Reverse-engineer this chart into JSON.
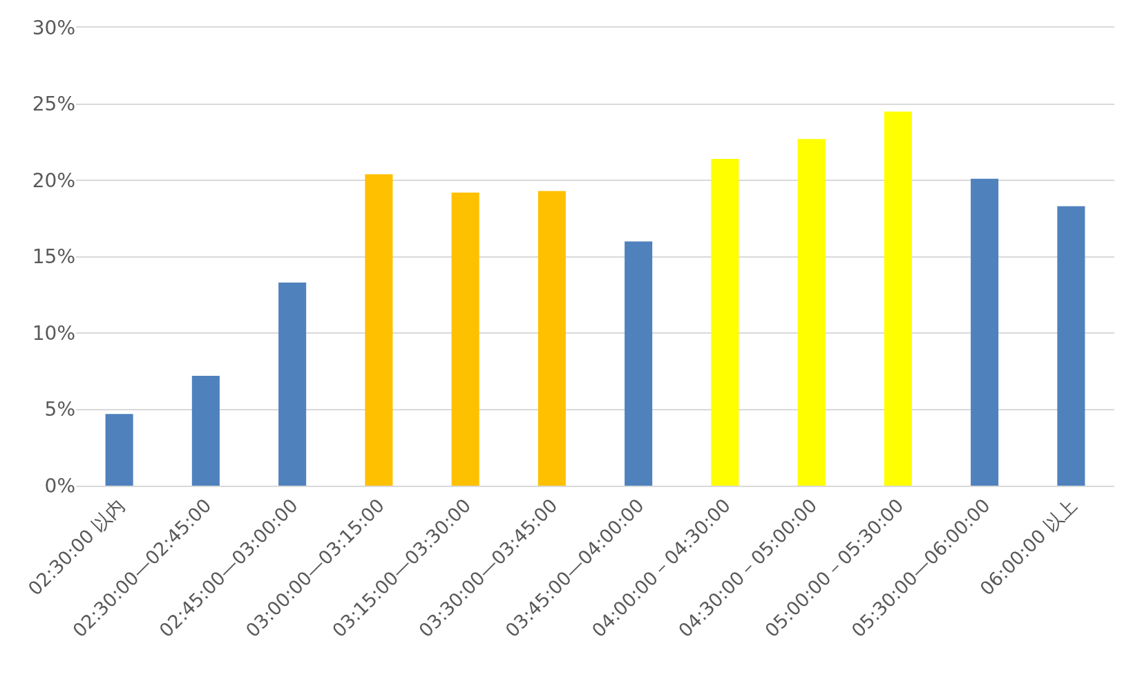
{
  "chart_data": {
    "type": "bar",
    "categories": [
      "02:30:00 以内",
      "02:30:00—02:45:00",
      "02:45:00—03:00:00",
      "03:00:00—03:15:00",
      "03:15:00—03:30:00",
      "03:30:00—03:45:00",
      "03:45:00—04:00:00",
      "04:00:00－04:30:00",
      "04:30:00－05:00:00",
      "05:00:00－05:30:00",
      "05:30:00—06:00:00",
      "06:00:00 以上"
    ],
    "values": [
      4.7,
      7.2,
      13.3,
      20.4,
      19.2,
      19.3,
      16.0,
      21.4,
      22.7,
      24.5,
      20.1,
      18.3
    ],
    "colors": [
      "#4f81bd",
      "#4f81bd",
      "#4f81bd",
      "#ffc000",
      "#ffc000",
      "#ffc000",
      "#4f81bd",
      "#ffff00",
      "#ffff00",
      "#ffff00",
      "#4f81bd",
      "#4f81bd"
    ],
    "ylim": [
      0,
      30
    ],
    "yticks": [
      {
        "value": 0,
        "label": "0%"
      },
      {
        "value": 5,
        "label": "5%"
      },
      {
        "value": 10,
        "label": "10%"
      },
      {
        "value": 15,
        "label": "15%"
      },
      {
        "value": 20,
        "label": "20%"
      },
      {
        "value": 25,
        "label": "25%"
      },
      {
        "value": 30,
        "label": "30%"
      }
    ],
    "grid": "y"
  }
}
